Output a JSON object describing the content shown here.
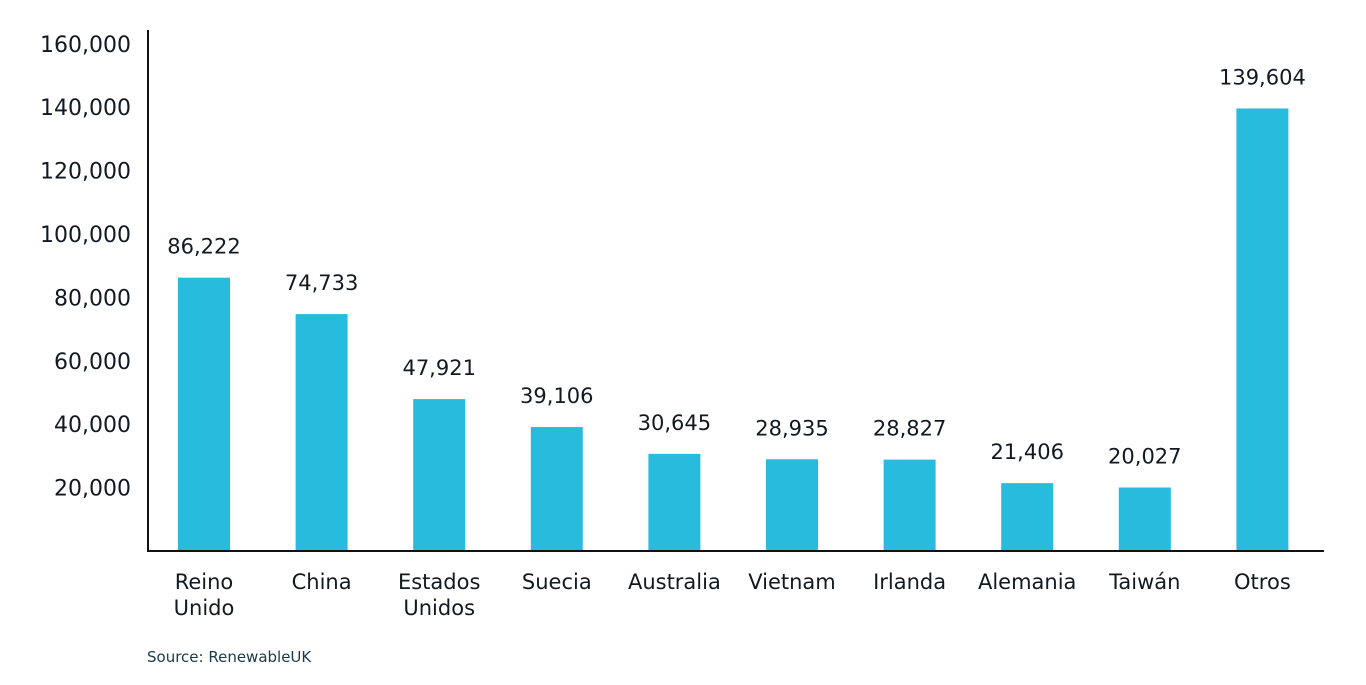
{
  "chart_data": {
    "type": "bar",
    "categories": [
      [
        "Reino",
        "Unido"
      ],
      [
        "China"
      ],
      [
        "Estados",
        "Unidos"
      ],
      [
        "Suecia"
      ],
      [
        "Australia"
      ],
      [
        "Vietnam"
      ],
      [
        "Irlanda"
      ],
      [
        "Alemania"
      ],
      [
        "Taiwán"
      ],
      [
        "Otros"
      ]
    ],
    "values": [
      86222,
      74733,
      47921,
      39106,
      30645,
      28935,
      28827,
      21406,
      20027,
      139604
    ],
    "value_labels": [
      "86,222",
      "74,733",
      "47,921",
      "39,106",
      "30,645",
      "28,935",
      "28,827",
      "21,406",
      "20,027",
      "139,604"
    ],
    "yticks": [
      20000,
      40000,
      60000,
      80000,
      100000,
      120000,
      140000,
      160000
    ],
    "ytick_labels": [
      "20,000",
      "40,000",
      "60,000",
      "80,000",
      "100,000",
      "120,000",
      "140,000",
      "160,000"
    ],
    "ylim": [
      0,
      170000
    ],
    "grid": false,
    "bar_color": "#27bbdd",
    "axis_color": "#111111"
  },
  "source": "Source: RenewableUK"
}
